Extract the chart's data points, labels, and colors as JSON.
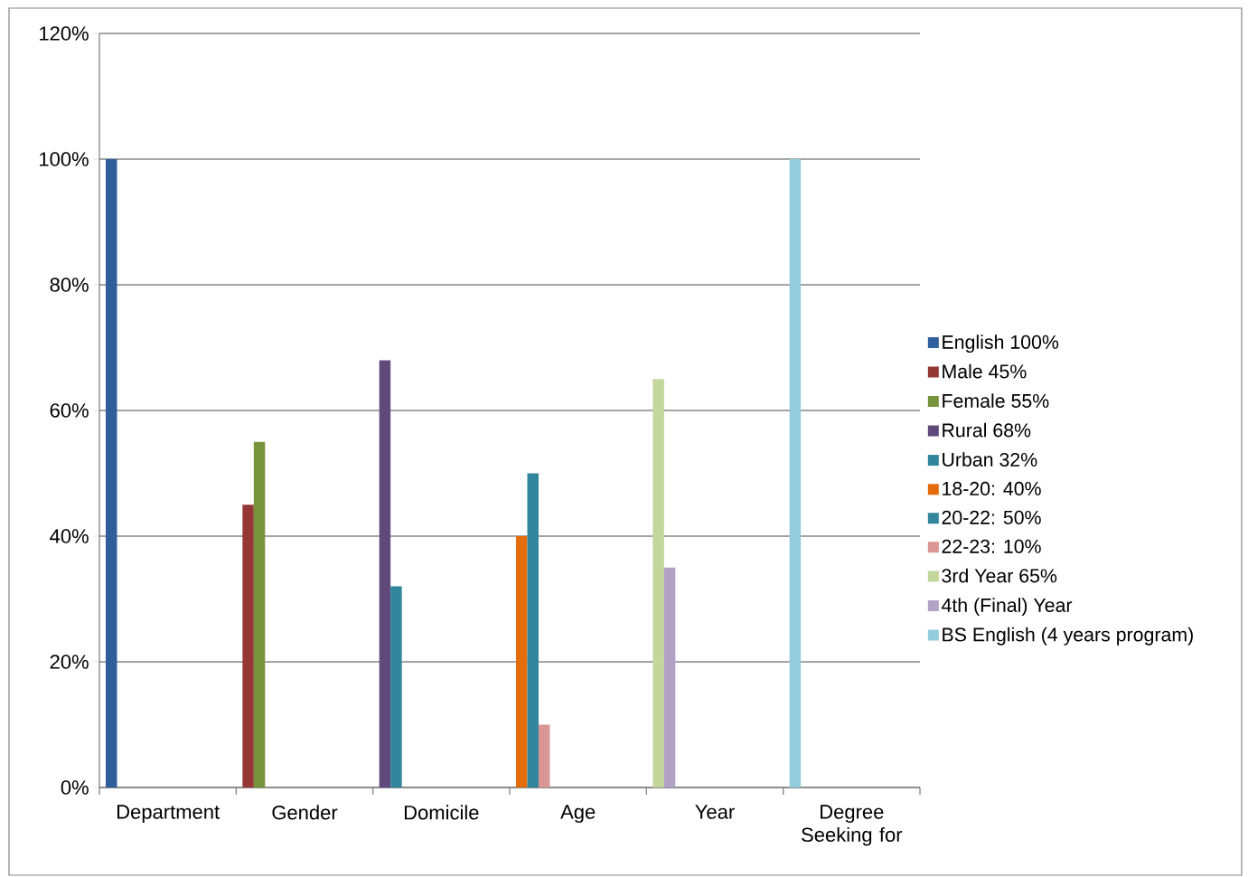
{
  "chart_data": {
    "type": "bar",
    "categories": [
      "Department",
      "Gender",
      "Domicile",
      "Age",
      "Year",
      "Degree Seeking for"
    ],
    "series": [
      {
        "name": "English 100%",
        "color": "#2e5e9c",
        "values": [
          100,
          null,
          null,
          null,
          null,
          null
        ]
      },
      {
        "name": "Male 45%",
        "color": "#953735",
        "values": [
          null,
          45,
          null,
          null,
          null,
          null
        ]
      },
      {
        "name": "Female 55%",
        "color": "#77933c",
        "values": [
          null,
          55,
          null,
          null,
          null,
          null
        ]
      },
      {
        "name": "Rural 68%",
        "color": "#604a7b",
        "values": [
          null,
          null,
          68,
          null,
          null,
          null
        ]
      },
      {
        "name": "Urban 32%",
        "color": "#31859c",
        "values": [
          null,
          null,
          32,
          null,
          null,
          null
        ]
      },
      {
        "name": "18-20: 40%",
        "color": "#e46c0a",
        "values": [
          null,
          null,
          null,
          40,
          null,
          null
        ]
      },
      {
        "name": "20-22: 50%",
        "color": "#31859c",
        "values": [
          null,
          null,
          null,
          50,
          null,
          null
        ]
      },
      {
        "name": "22-23: 10%",
        "color": "#d99694",
        "values": [
          null,
          null,
          null,
          10,
          null,
          null
        ]
      },
      {
        "name": "3rd Year 65%",
        "color": "#c3d69b",
        "values": [
          null,
          null,
          null,
          null,
          65,
          null
        ]
      },
      {
        "name": "4th (Final) Year",
        "color": "#b3a2c7",
        "values": [
          null,
          null,
          null,
          null,
          35,
          null
        ]
      },
      {
        "name": "BS English (4 years program)",
        "color": "#93cddd",
        "values": [
          null,
          null,
          null,
          null,
          null,
          100
        ]
      }
    ],
    "ylim": [
      0,
      120
    ],
    "yticks": [
      {
        "value": 0,
        "label": "0%"
      },
      {
        "value": 20,
        "label": "20%"
      },
      {
        "value": 40,
        "label": "40%"
      },
      {
        "value": 60,
        "label": "60%"
      },
      {
        "value": 80,
        "label": "80%"
      },
      {
        "value": 100,
        "label": "100%"
      },
      {
        "value": 120,
        "label": "120%"
      }
    ],
    "grid": "y",
    "legend": "right"
  }
}
